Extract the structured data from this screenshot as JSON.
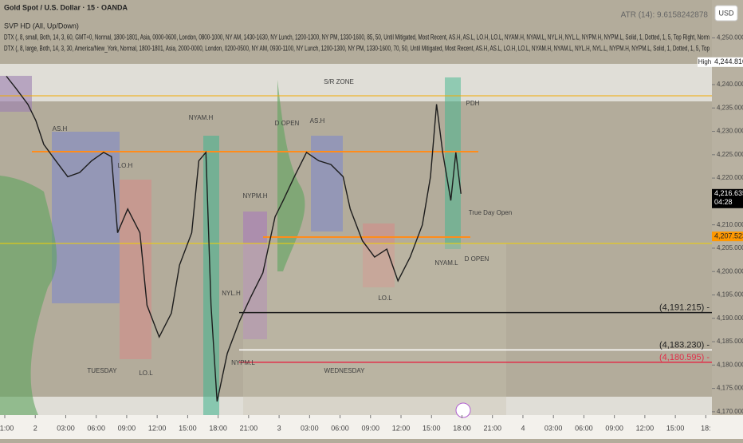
{
  "chart_data": {
    "type": "line",
    "title": "Gold Spot / U.S. Dollar · 15 · OANDA",
    "indicators": [
      "SVP HD (All, Up/Down)",
      "DTX (, 8, small, Both, 14, 3, 60, GMT+0, Normal, 1800-1801, Asia, 0000-0600, London, 0800-1000, NY AM, 1430-1630, NY Lunch, 1200-1300, NY PM, 1330-1600, 85, 50, Until Mitigated, Most Recent, AS.H, AS.L, LO.H, LO.L, NYAM.H, NYAM.L, NYL.H, NYL.L, NYPM.H, NYPM.L, Solid, 1, Dotted, 1, 5, Top Right, Norm",
      "DTX (, 8, large, Both, 14, 3, 30, America/New_York, Normal, 1800-1801, Asia, 2000-0000, London, 0200-0500, NY AM, 0930-1100, NY Lunch, 1200-1300, NY PM, 1330-1600, 70, 50, Until Mitigated, Most Recent, AS.H, AS.L, LO.H, LO.L, NYAM.H, NYAM.L, NYL.H, NYL.L, NYPM.H, NYPM.L, Solid, 1, Dotted, 1, 5, Top"
    ],
    "atr": "ATR (14): 9.6158242878",
    "currency": "USD",
    "color": "#1c1c1c",
    "x": [
      0.16,
      1.1,
      2.27,
      3.06,
      3.84,
      5.02,
      6.2,
      7.37,
      8.55,
      9.73,
      10.5,
      11.1,
      12.1,
      13.3,
      14.0,
      15.2,
      16.4,
      17.2,
      18.4,
      19.1,
      19.8,
      20.3,
      20.9,
      21.9,
      23.1,
      24.2,
      25.4,
      26.6,
      27.4,
      28.5,
      29.7,
      30.9,
      32.1,
      33.3,
      34.0,
      35.2,
      36.4,
      37.6,
      38.7,
      39.9,
      41.1,
      41.9,
      42.5,
      43.1,
      43.9,
      44.4,
      44.9
    ],
    "values": [
      4241.8,
      4239.2,
      4235.8,
      4232.3,
      4227.2,
      4223.7,
      4220.3,
      4221.2,
      4223.7,
      4225.5,
      4224.6,
      4208.3,
      4213.4,
      4208.3,
      4192.8,
      4186.0,
      4191.1,
      4201.4,
      4208.3,
      4223.7,
      4225.5,
      4192.8,
      4172.2,
      4182.5,
      4189.4,
      4194.5,
      4199.7,
      4211.7,
      4215.2,
      4220.3,
      4225.5,
      4223.7,
      4222.9,
      4220.3,
      4213.4,
      4206.6,
      4203.1,
      4204.8,
      4198.0,
      4203.1,
      4210.0,
      4220.3,
      4235.8,
      4225.5,
      4215.2,
      4225.5,
      4216.635
    ],
    "xlim": [
      -0.47,
      69.6
    ],
    "xticks": [
      {
        "value": 0,
        "label": "21:00"
      },
      {
        "value": 3,
        "label": "2"
      },
      {
        "value": 6,
        "label": "03:00"
      },
      {
        "value": 9,
        "label": "06:00"
      },
      {
        "value": 12,
        "label": "09:00"
      },
      {
        "value": 15,
        "label": "12:00"
      },
      {
        "value": 18,
        "label": "15:00"
      },
      {
        "value": 21,
        "label": "18:00"
      },
      {
        "value": 24,
        "label": "21:00"
      },
      {
        "value": 27,
        "label": "3"
      },
      {
        "value": 30,
        "label": "03:00"
      },
      {
        "value": 33,
        "label": "06:00"
      },
      {
        "value": 36,
        "label": "09:00"
      },
      {
        "value": 39,
        "label": "12:00"
      },
      {
        "value": 42,
        "label": "15:00"
      },
      {
        "value": 45,
        "label": "18:00"
      },
      {
        "value": 48,
        "label": "21:00"
      },
      {
        "value": 51,
        "label": "4"
      },
      {
        "value": 54,
        "label": "03:00"
      },
      {
        "value": 57,
        "label": "06:00"
      },
      {
        "value": 60,
        "label": "09:00"
      },
      {
        "value": 63,
        "label": "12:00"
      },
      {
        "value": 66,
        "label": "15:00"
      },
      {
        "value": 69,
        "label": "18:"
      }
    ],
    "ylim": [
      4169.3,
      4258.1
    ],
    "yticks": [
      {
        "value": 4170,
        "label": "4,170.000"
      },
      {
        "value": 4175,
        "label": "4,175.000"
      },
      {
        "value": 4180,
        "label": "4,180.000"
      },
      {
        "value": 4185,
        "label": "4,185.000"
      },
      {
        "value": 4190,
        "label": "4,190.000"
      },
      {
        "value": 4195,
        "label": "4,195.000"
      },
      {
        "value": 4200,
        "label": "4,200.000"
      },
      {
        "value": 4205,
        "label": "4,205.000"
      },
      {
        "value": 4210,
        "label": "4,210.000"
      },
      {
        "value": 4215,
        "label": "4,215.000"
      },
      {
        "value": 4220,
        "label": "4,220.000"
      },
      {
        "value": 4225,
        "label": "4,225.000"
      },
      {
        "value": 4230,
        "label": "4,230.000"
      },
      {
        "value": 4235,
        "label": "4,235.000"
      },
      {
        "value": 4240,
        "label": "4,240.000"
      },
      {
        "value": 4245,
        "label": "4,245.000"
      },
      {
        "value": 4250,
        "label": "4,250.000"
      }
    ],
    "grid": false,
    "levels": [
      {
        "value": 4191.215,
        "label": "(4,191.215) -",
        "color": "#1c1c1c"
      },
      {
        "value": 4183.23,
        "label": "(4,183.230) -",
        "color": "#ffffff"
      },
      {
        "value": 4180.595,
        "label": "(4,180.595) -",
        "color": "#e0304a"
      }
    ],
    "price_labels": [
      {
        "value": 4244.81,
        "label": "4,244.810",
        "tag": "High",
        "color": "#ffffff"
      },
      {
        "value": 4216.635,
        "label": "4,216.635",
        "tag": "04:28",
        "color": "#000000"
      },
      {
        "value": 4207.523,
        "label": "4,207.523",
        "color": "#ff9800"
      }
    ],
    "annotations": [
      "S/R ZONE",
      "AS.H",
      "NYAM.H",
      "LO.H",
      "NYPM.H",
      "D OPEN",
      "AS.H",
      "True Day Open",
      "PDH",
      "NYAM.L",
      "LO.L",
      "NYPM.L",
      "NYL.H",
      "TUESDAY",
      "WEDNESDAY",
      "D OPEN",
      "LO.L"
    ]
  }
}
